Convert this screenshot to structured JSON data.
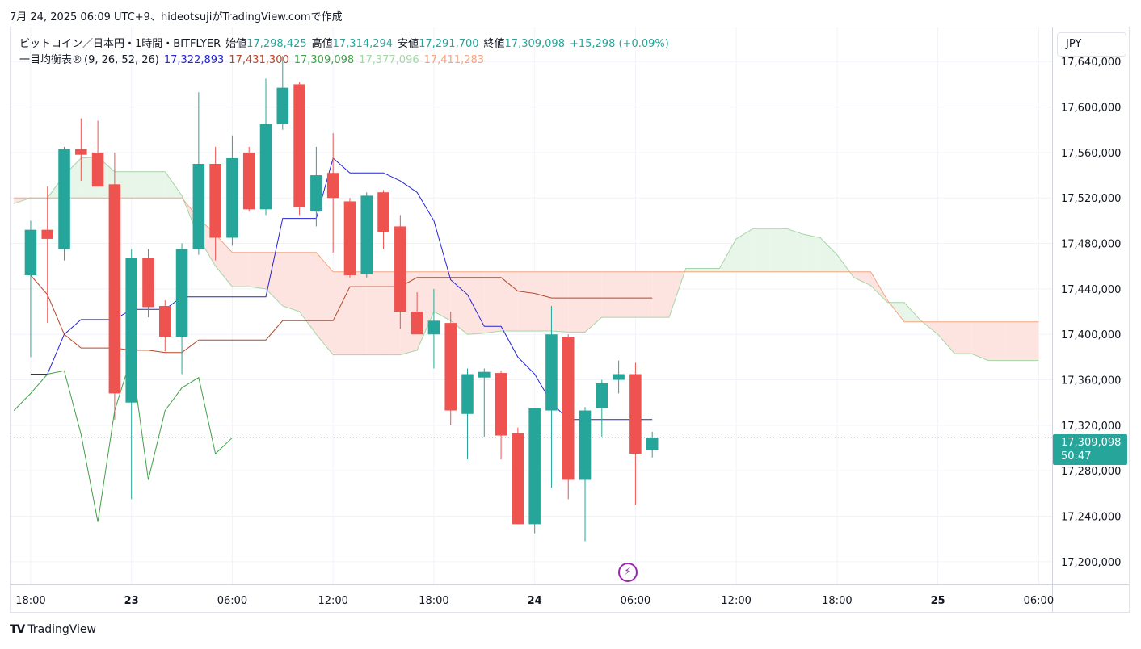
{
  "caption": "7月 24, 2025 06:09 UTC+9、hideotsujiがTradingView.comで作成",
  "legend": {
    "symbol": "ビットコイン／日本円・1時間・BITFLYER",
    "open_label": "始値",
    "open": "17,298,425",
    "high_label": "高値",
    "high": "17,314,294",
    "low_label": "安値",
    "low": "17,291,700",
    "close_label": "終値",
    "close": "17,309,098",
    "change": "+15,298 (+0.09%)",
    "ichimoku_name": "一目均衡表®",
    "ichimoku_params": "(9, 26, 52, 26)",
    "tenkan": "17,322,893",
    "kijun": "17,431,300",
    "chikou": "17,309,098",
    "span_a": "17,377,096",
    "span_b": "17,411,283"
  },
  "currency": "JPY",
  "price_tag": {
    "price": "17,309,098",
    "countdown": "50:47"
  },
  "brand": {
    "logo_text": "TV",
    "name": "TradingView"
  },
  "colors": {
    "up": "#26a69a",
    "down": "#ef5350",
    "tenkan": "#2962ff",
    "tenkan_line": "#2424d6",
    "kijun": "#b7472a",
    "chikou": "#43a047",
    "span_a": "#a5d6a7",
    "span_b": "#f4a582",
    "cloud_bull": "#e8f5e9",
    "cloud_bear": "#fde4e0",
    "grid": "#f0f3fa",
    "bolt": "#9c27b0"
  },
  "chart_data": {
    "type": "candlestick",
    "interval": "1h",
    "y_range": [
      17180000,
      17670000
    ],
    "y_ticks": [
      17200000,
      17240000,
      17280000,
      17320000,
      17360000,
      17400000,
      17440000,
      17480000,
      17520000,
      17560000,
      17600000,
      17640000
    ],
    "y_tick_labels": [
      "17,200,000",
      "17,240,000",
      "17,280,000",
      "17,320,000",
      "17,360,000",
      "17,400,000",
      "17,440,000",
      "17,480,000",
      "17,520,000",
      "17,560,000",
      "17,600,000",
      "17,640,000"
    ],
    "x_range": [
      -1.2,
      60.8
    ],
    "x_ticks": [
      {
        "index": 0,
        "label": "18:00",
        "bold": false
      },
      {
        "index": 6,
        "label": "23",
        "bold": true
      },
      {
        "index": 12,
        "label": "06:00",
        "bold": false
      },
      {
        "index": 18,
        "label": "12:00",
        "bold": false
      },
      {
        "index": 24,
        "label": "18:00",
        "bold": false
      },
      {
        "index": 30,
        "label": "24",
        "bold": true
      },
      {
        "index": 36,
        "label": "06:00",
        "bold": false
      },
      {
        "index": 42,
        "label": "12:00",
        "bold": false
      },
      {
        "index": 48,
        "label": "18:00",
        "bold": false
      },
      {
        "index": 54,
        "label": "25",
        "bold": true
      },
      {
        "index": 60,
        "label": "06:00",
        "bold": false
      }
    ],
    "last_price": 17309098,
    "candles": [
      {
        "o": 17452000,
        "h": 17500000,
        "l": 17380000,
        "c": 17492000
      },
      {
        "o": 17492000,
        "h": 17530000,
        "l": 17410000,
        "c": 17484000
      },
      {
        "o": 17475000,
        "h": 17565000,
        "l": 17465000,
        "c": 17563000
      },
      {
        "o": 17563000,
        "h": 17590000,
        "l": 17535000,
        "c": 17558000
      },
      {
        "o": 17560000,
        "h": 17588000,
        "l": 17530000,
        "c": 17530000
      },
      {
        "o": 17532000,
        "h": 17560000,
        "l": 17325000,
        "c": 17348000
      },
      {
        "o": 17340000,
        "h": 17475000,
        "l": 17255000,
        "c": 17467000
      },
      {
        "o": 17467000,
        "h": 17475000,
        "l": 17415000,
        "c": 17424000
      },
      {
        "o": 17425000,
        "h": 17430000,
        "l": 17385000,
        "c": 17398000
      },
      {
        "o": 17398000,
        "h": 17480000,
        "l": 17365000,
        "c": 17475000
      },
      {
        "o": 17475000,
        "h": 17613000,
        "l": 17470000,
        "c": 17550000
      },
      {
        "o": 17550000,
        "h": 17565000,
        "l": 17465000,
        "c": 17485000
      },
      {
        "o": 17485000,
        "h": 17575000,
        "l": 17478000,
        "c": 17555000
      },
      {
        "o": 17560000,
        "h": 17565000,
        "l": 17508000,
        "c": 17510000
      },
      {
        "o": 17510000,
        "h": 17625000,
        "l": 17505000,
        "c": 17585000
      },
      {
        "o": 17585000,
        "h": 17645000,
        "l": 17580000,
        "c": 17617000
      },
      {
        "o": 17620000,
        "h": 17622000,
        "l": 17505000,
        "c": 17512000
      },
      {
        "o": 17508000,
        "h": 17565000,
        "l": 17495000,
        "c": 17540000
      },
      {
        "o": 17542000,
        "h": 17577000,
        "l": 17472000,
        "c": 17520000
      },
      {
        "o": 17517000,
        "h": 17520000,
        "l": 17450000,
        "c": 17452000
      },
      {
        "o": 17453000,
        "h": 17525000,
        "l": 17450000,
        "c": 17522000
      },
      {
        "o": 17525000,
        "h": 17527000,
        "l": 17475000,
        "c": 17490000
      },
      {
        "o": 17495000,
        "h": 17505000,
        "l": 17405000,
        "c": 17420000
      },
      {
        "o": 17420000,
        "h": 17437000,
        "l": 17400000,
        "c": 17400000
      },
      {
        "o": 17400000,
        "h": 17440000,
        "l": 17370000,
        "c": 17412000
      },
      {
        "o": 17410000,
        "h": 17420000,
        "l": 17320000,
        "c": 17333000
      },
      {
        "o": 17330000,
        "h": 17370000,
        "l": 17290000,
        "c": 17365000
      },
      {
        "o": 17362000,
        "h": 17370000,
        "l": 17310000,
        "c": 17367000
      },
      {
        "o": 17366000,
        "h": 17368000,
        "l": 17290000,
        "c": 17311000
      },
      {
        "o": 17313000,
        "h": 17318000,
        "l": 17233000,
        "c": 17233000
      },
      {
        "o": 17233000,
        "h": 17335000,
        "l": 17225000,
        "c": 17335000
      },
      {
        "o": 17333000,
        "h": 17425000,
        "l": 17265000,
        "c": 17400000
      },
      {
        "o": 17398000,
        "h": 17400000,
        "l": 17255000,
        "c": 17272000
      },
      {
        "o": 17272000,
        "h": 17336000,
        "l": 17218000,
        "c": 17333000
      },
      {
        "o": 17335000,
        "h": 17360000,
        "l": 17310000,
        "c": 17357000
      },
      {
        "o": 17360000,
        "h": 17377000,
        "l": 17348000,
        "c": 17365000
      },
      {
        "o": 17365000,
        "h": 17375000,
        "l": 17250000,
        "c": 17295000
      },
      {
        "o": 17298425,
        "h": 17314294,
        "l": 17291700,
        "c": 17309098
      }
    ],
    "lines": {
      "tenkan": [
        [
          0,
          17365000
        ],
        [
          1,
          17365000
        ],
        [
          2,
          17400000
        ],
        [
          3,
          17413000
        ],
        [
          5,
          17413000
        ],
        [
          6,
          17422000
        ],
        [
          8,
          17422000
        ],
        [
          9,
          17433000
        ],
        [
          14,
          17433000
        ],
        [
          15,
          17502000
        ],
        [
          17,
          17502000
        ],
        [
          18,
          17555000
        ],
        [
          19,
          17542000
        ],
        [
          21,
          17542000
        ],
        [
          22,
          17535000
        ],
        [
          23,
          17525000
        ],
        [
          24,
          17500000
        ],
        [
          25,
          17448000
        ],
        [
          26,
          17435000
        ],
        [
          27,
          17407000
        ],
        [
          28,
          17407000
        ],
        [
          29,
          17380000
        ],
        [
          30,
          17365000
        ],
        [
          31,
          17340000
        ],
        [
          32,
          17325000
        ],
        [
          36,
          17325000
        ],
        [
          37,
          17325000
        ]
      ],
      "kijun": [
        [
          0,
          17452000
        ],
        [
          1,
          17435000
        ],
        [
          2,
          17400000
        ],
        [
          3,
          17388000
        ],
        [
          5,
          17388000
        ],
        [
          6,
          17386000
        ],
        [
          7,
          17386000
        ],
        [
          8,
          17384000
        ],
        [
          9,
          17384000
        ],
        [
          10,
          17395000
        ],
        [
          14,
          17395000
        ],
        [
          15,
          17412000
        ],
        [
          18,
          17412000
        ],
        [
          19,
          17442000
        ],
        [
          22,
          17442000
        ],
        [
          23,
          17450000
        ],
        [
          28,
          17450000
        ],
        [
          29,
          17438000
        ],
        [
          30,
          17436000
        ],
        [
          31,
          17432000
        ],
        [
          37,
          17432000
        ]
      ],
      "chikou": [
        [
          -1,
          17333000
        ],
        [
          0,
          17348000
        ],
        [
          1,
          17365000
        ],
        [
          2,
          17368000
        ],
        [
          3,
          17312000
        ],
        [
          4,
          17235000
        ],
        [
          5,
          17333000
        ],
        [
          6,
          17380000
        ],
        [
          7,
          17272000
        ],
        [
          8,
          17333000
        ],
        [
          9,
          17353000
        ],
        [
          10,
          17362000
        ],
        [
          11,
          17295000
        ],
        [
          12,
          17309000
        ]
      ],
      "span_a": [
        [
          -1,
          17515000
        ],
        [
          0,
          17520000
        ],
        [
          1,
          17520000
        ],
        [
          2,
          17540000
        ],
        [
          3,
          17555000
        ],
        [
          4,
          17556000
        ],
        [
          5,
          17543000
        ],
        [
          6,
          17543000
        ],
        [
          7,
          17543000
        ],
        [
          8,
          17543000
        ],
        [
          9,
          17522000
        ],
        [
          10,
          17485000
        ],
        [
          11,
          17460000
        ],
        [
          12,
          17442000
        ],
        [
          13,
          17442000
        ],
        [
          14,
          17440000
        ],
        [
          15,
          17425000
        ],
        [
          16,
          17420000
        ],
        [
          17,
          17400000
        ],
        [
          18,
          17382000
        ],
        [
          19,
          17382000
        ],
        [
          20,
          17382000
        ],
        [
          21,
          17382000
        ],
        [
          22,
          17382000
        ],
        [
          23,
          17386000
        ],
        [
          24,
          17420000
        ],
        [
          25,
          17412000
        ],
        [
          26,
          17400000
        ],
        [
          27,
          17401000
        ],
        [
          28,
          17403000
        ],
        [
          29,
          17403000
        ],
        [
          30,
          17403000
        ],
        [
          31,
          17403000
        ],
        [
          32,
          17402000
        ],
        [
          33,
          17402000
        ],
        [
          34,
          17415000
        ],
        [
          35,
          17415000
        ],
        [
          36,
          17415000
        ],
        [
          37,
          17415000
        ],
        [
          38,
          17415000
        ],
        [
          39,
          17458000
        ],
        [
          40,
          17458000
        ],
        [
          41,
          17458000
        ],
        [
          42,
          17484000
        ],
        [
          43,
          17493000
        ],
        [
          44,
          17493000
        ],
        [
          45,
          17493000
        ],
        [
          46,
          17488000
        ],
        [
          47,
          17485000
        ],
        [
          48,
          17470000
        ],
        [
          49,
          17450000
        ],
        [
          50,
          17443000
        ],
        [
          51,
          17428000
        ],
        [
          52,
          17428000
        ],
        [
          53,
          17412000
        ],
        [
          54,
          17400000
        ],
        [
          55,
          17383000
        ],
        [
          56,
          17383000
        ],
        [
          57,
          17377000
        ],
        [
          58,
          17377000
        ],
        [
          59,
          17377000
        ],
        [
          60,
          17377000
        ]
      ],
      "span_b": [
        [
          -1,
          17520000
        ],
        [
          0,
          17520000
        ],
        [
          1,
          17520000
        ],
        [
          2,
          17520000
        ],
        [
          3,
          17520000
        ],
        [
          4,
          17520000
        ],
        [
          5,
          17520000
        ],
        [
          6,
          17520000
        ],
        [
          7,
          17520000
        ],
        [
          8,
          17520000
        ],
        [
          9,
          17520000
        ],
        [
          10,
          17502000
        ],
        [
          11,
          17488000
        ],
        [
          12,
          17472000
        ],
        [
          13,
          17472000
        ],
        [
          14,
          17472000
        ],
        [
          15,
          17472000
        ],
        [
          16,
          17472000
        ],
        [
          17,
          17472000
        ],
        [
          18,
          17455000
        ],
        [
          19,
          17455000
        ],
        [
          20,
          17455000
        ],
        [
          21,
          17455000
        ],
        [
          22,
          17455000
        ],
        [
          23,
          17455000
        ],
        [
          24,
          17455000
        ],
        [
          25,
          17455000
        ],
        [
          26,
          17455000
        ],
        [
          27,
          17455000
        ],
        [
          28,
          17455000
        ],
        [
          29,
          17455000
        ],
        [
          30,
          17455000
        ],
        [
          31,
          17455000
        ],
        [
          32,
          17455000
        ],
        [
          33,
          17455000
        ],
        [
          34,
          17455000
        ],
        [
          35,
          17455000
        ],
        [
          36,
          17455000
        ],
        [
          37,
          17455000
        ],
        [
          38,
          17455000
        ],
        [
          39,
          17455000
        ],
        [
          40,
          17455000
        ],
        [
          41,
          17455000
        ],
        [
          42,
          17455000
        ],
        [
          43,
          17455000
        ],
        [
          44,
          17455000
        ],
        [
          45,
          17455000
        ],
        [
          46,
          17455000
        ],
        [
          47,
          17455000
        ],
        [
          48,
          17455000
        ],
        [
          49,
          17455000
        ],
        [
          50,
          17455000
        ],
        [
          51,
          17430000
        ],
        [
          52,
          17411000
        ],
        [
          53,
          17411000
        ],
        [
          54,
          17411000
        ],
        [
          55,
          17411000
        ],
        [
          56,
          17411000
        ],
        [
          57,
          17411000
        ],
        [
          58,
          17411000
        ],
        [
          59,
          17411000
        ],
        [
          60,
          17411000
        ]
      ]
    }
  }
}
